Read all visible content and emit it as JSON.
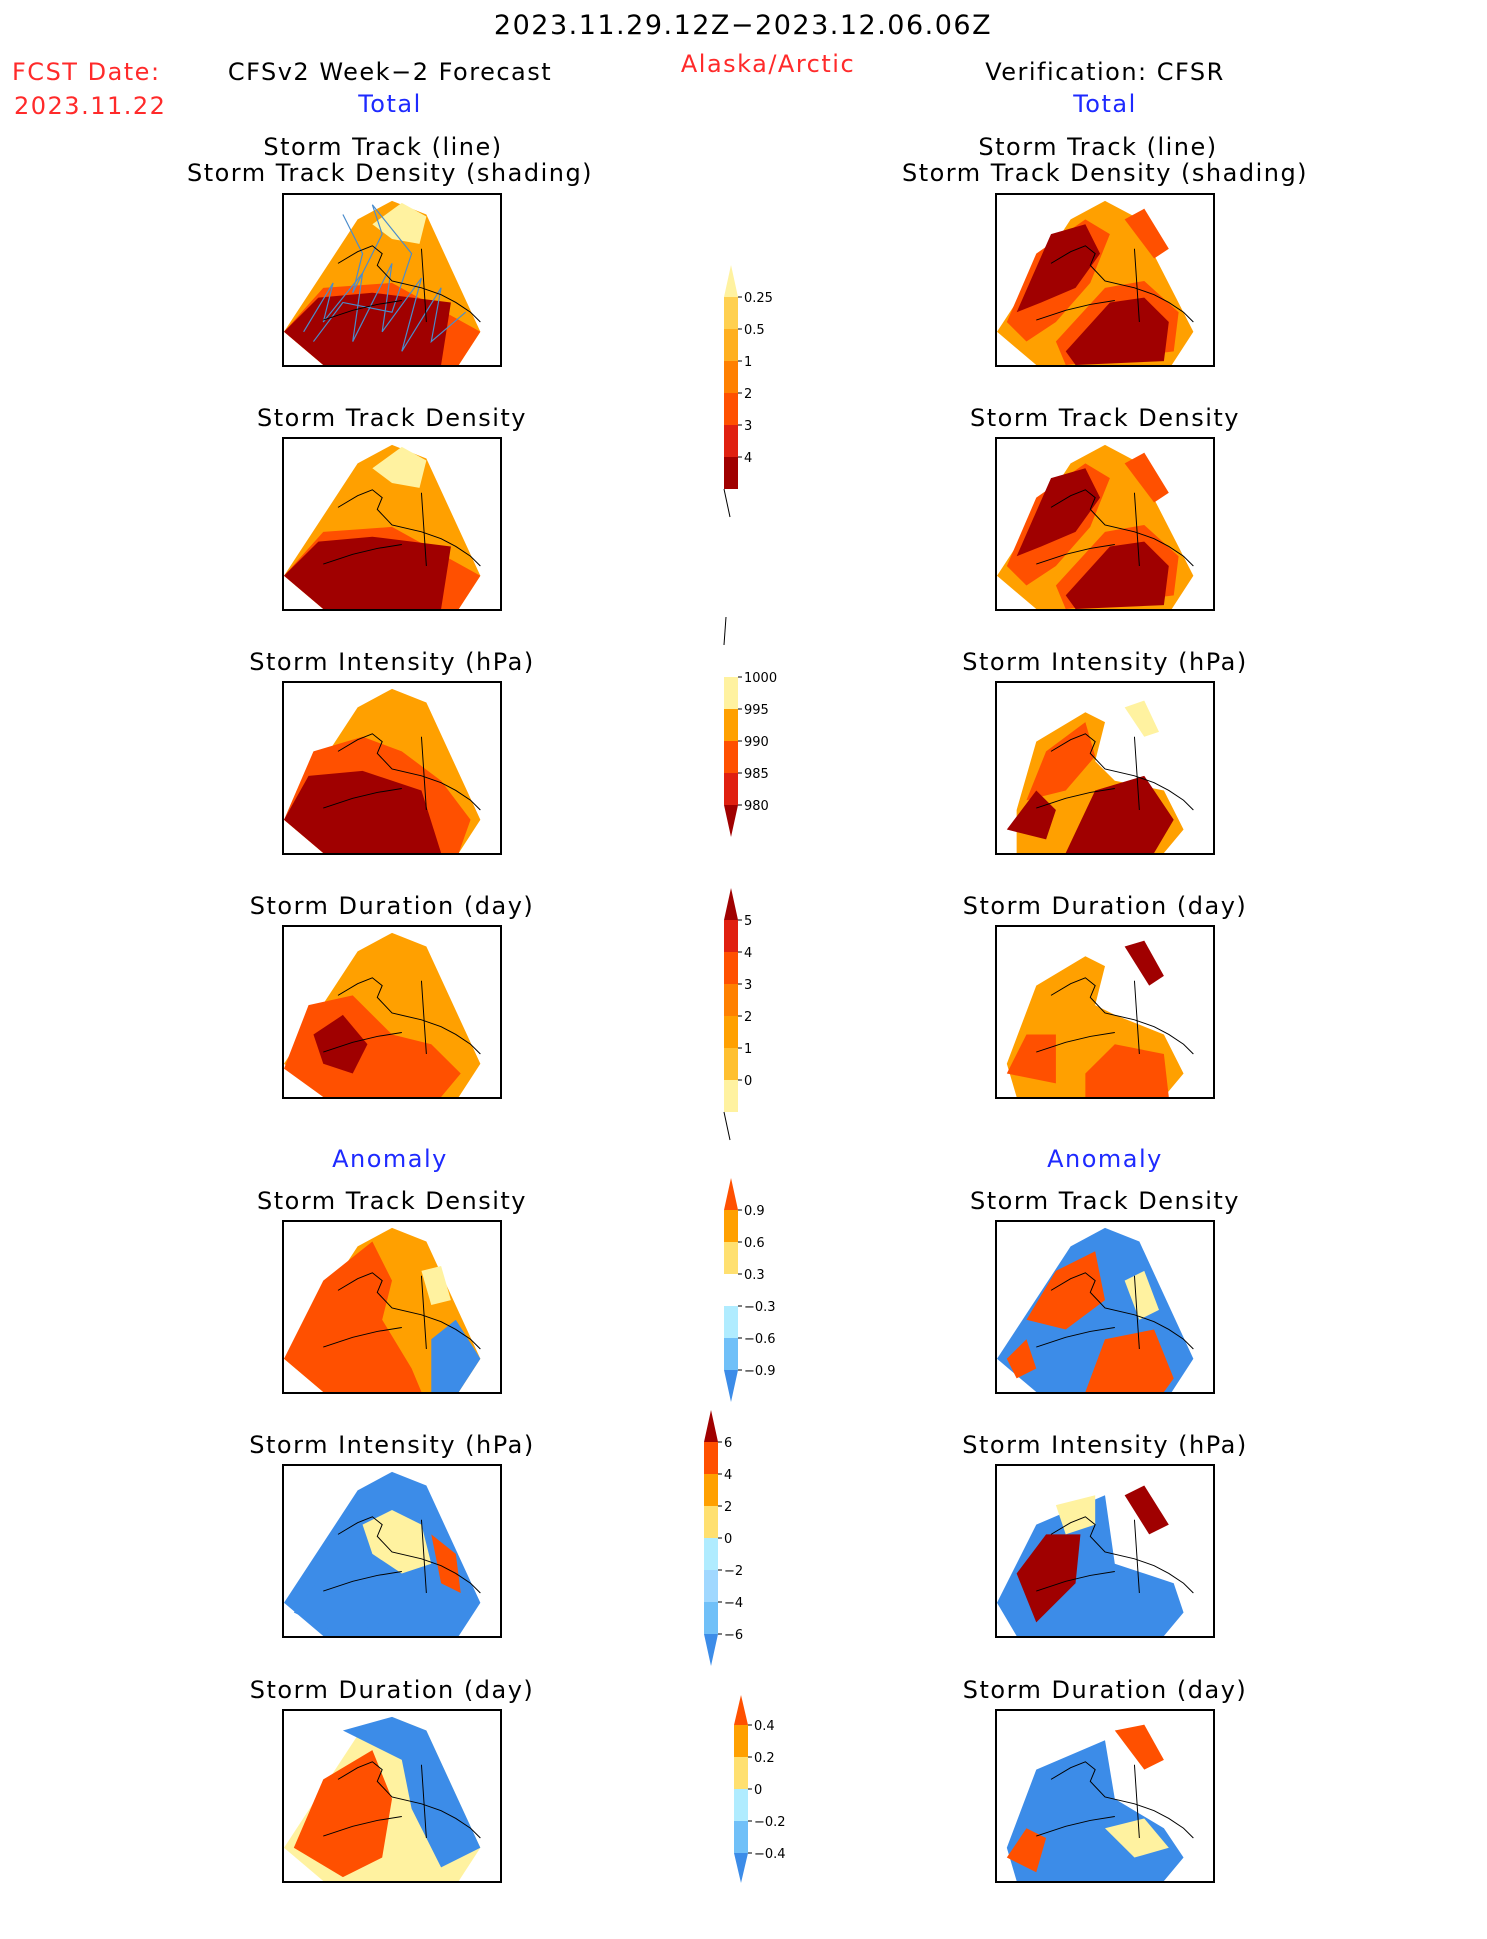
{
  "header": {
    "period": "2023.11.29.12Z−2023.12.06.06Z",
    "fcst_label": "FCST Date:",
    "fcst_date": "2023.11.22",
    "left_title": "CFSv2 Week−2 Forecast",
    "region": "Alaska/Arctic",
    "right_title": "Verification: CFSR",
    "total_label": "Total",
    "anomaly_label": "Anomaly"
  },
  "panel_titles": {
    "track_line": "Storm Track (line)",
    "track_shading": "Storm Track Density (shading)",
    "density": "Storm Track Density",
    "intensity": "Storm Intensity (hPa)",
    "duration": "Storm Duration (day)"
  },
  "colors": {
    "dark_red": "#a00000",
    "red": "#e02010",
    "orange_red": "#ff5000",
    "orange": "#ffa000",
    "light_orange": "#ffc030",
    "pale_yellow": "#fff2a0",
    "white": "#ffffff",
    "light_cyan": "#b0ecff",
    "light_blue": "#70c0f8",
    "blue": "#3c8ce8",
    "dark_blue": "#1450d0",
    "track_line": "#4a8ccc"
  },
  "chart_data": [
    {
      "type": "heatmap",
      "name": "total_track_density_colorbar",
      "levels": [
        0.25,
        0.5,
        1,
        2,
        3,
        4
      ],
      "tick_labels": [
        "0.25",
        "0.5",
        "1",
        "2",
        "3",
        "4"
      ],
      "colors": [
        "#fff2a0",
        "#ffd050",
        "#ffb020",
        "#ff8000",
        "#ff5000",
        "#e02010",
        "#a00000"
      ],
      "extend": "max"
    },
    {
      "type": "heatmap",
      "name": "total_intensity_colorbar",
      "levels": [
        1000,
        995,
        990,
        985,
        980
      ],
      "tick_labels": [
        "1000",
        "995",
        "990",
        "985",
        "980"
      ],
      "colors": [
        "#ffffff",
        "#fff2a0",
        "#ffa000",
        "#ff5000",
        "#e02010",
        "#a00000"
      ],
      "extend": "min"
    },
    {
      "type": "heatmap",
      "name": "total_duration_colorbar",
      "levels": [
        5,
        4,
        3,
        2,
        1,
        0
      ],
      "tick_labels": [
        "5",
        "4",
        "3",
        "2",
        "1",
        "0"
      ],
      "colors": [
        "#a00000",
        "#e02010",
        "#ff5000",
        "#ff8000",
        "#ffa000",
        "#ffc030",
        "#fff2a0"
      ],
      "extend": "max"
    },
    {
      "type": "heatmap",
      "name": "anomaly_density_colorbar",
      "levels": [
        0.9,
        0.6,
        0.3,
        -0.3,
        -0.6,
        -0.9
      ],
      "tick_labels": [
        "0.9",
        "0.6",
        "0.3",
        "−0.3",
        "−0.6",
        "−0.9"
      ],
      "colors": [
        "#ff5000",
        "#ffa000",
        "#ffe070",
        "#ffffff",
        "#b0ecff",
        "#70c0f8",
        "#3c8ce8"
      ],
      "extend": "both"
    },
    {
      "type": "heatmap",
      "name": "anomaly_intensity_colorbar",
      "levels": [
        6,
        4,
        2,
        0,
        -2,
        -4,
        -6
      ],
      "tick_labels": [
        "6",
        "4",
        "2",
        "0",
        "−2",
        "−4",
        "−6"
      ],
      "colors": [
        "#a00000",
        "#ff5000",
        "#ffa000",
        "#ffe070",
        "#b0ecff",
        "#a0d8ff",
        "#70c0f8",
        "#3c8ce8"
      ],
      "extend": "both"
    },
    {
      "type": "heatmap",
      "name": "anomaly_duration_colorbar",
      "levels": [
        0.4,
        0.2,
        0,
        -0.2,
        -0.4
      ],
      "tick_labels": [
        "0.4",
        "0.2",
        "0",
        "−0.2",
        "−0.4"
      ],
      "colors": [
        "#ff5000",
        "#ffa000",
        "#ffe070",
        "#b0ecff",
        "#70c0f8",
        "#3c8ce8"
      ],
      "extend": "both"
    }
  ]
}
